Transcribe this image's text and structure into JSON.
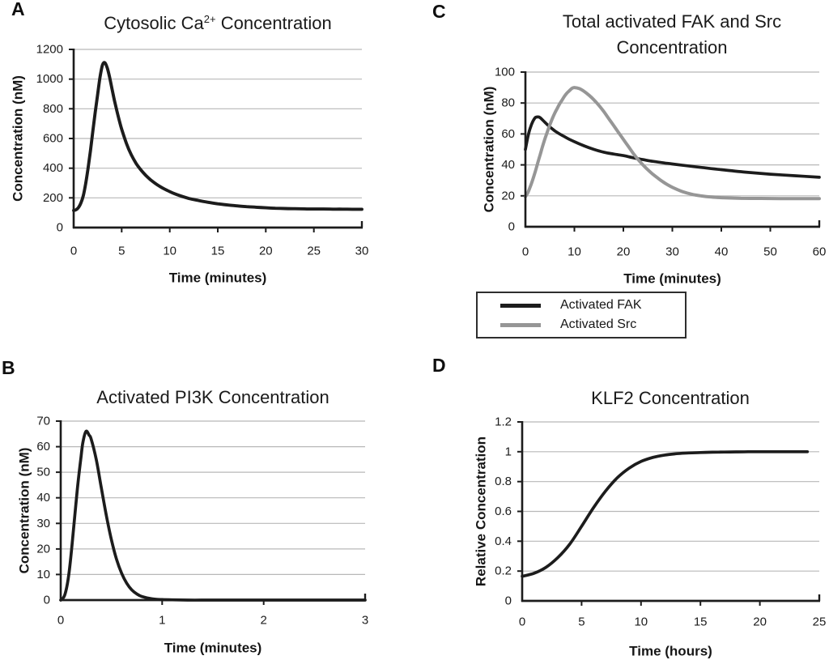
{
  "figure_type": "four-panel-line-figure",
  "colors": {
    "curve_black": "#1c1c1c",
    "curve_gray": "#969696",
    "gridline": "#b8b8b8",
    "axis": "#1c1c1c",
    "text": "#1c1c1c"
  },
  "chart_data": [
    {
      "panel_letter": "A",
      "type": "line",
      "title": "Cytosolic Ca2+ Concentration",
      "title_parts": {
        "pre": "Cytosolic Ca",
        "sup": "2+",
        "post": " Concentration"
      },
      "title_line2": "",
      "xlabel": "Time (minutes)",
      "ylabel": "Concentration (nM)",
      "xlim": [
        0,
        30
      ],
      "ylim": [
        0,
        1200
      ],
      "xticks": [
        0,
        5,
        10,
        15,
        20,
        25,
        30
      ],
      "yticks": [
        0,
        200,
        400,
        600,
        800,
        1000,
        1200
      ],
      "grid": "horizontal",
      "series": [
        {
          "name": "Cytosolic Ca2+",
          "color": "#1c1c1c",
          "width": 3.9,
          "x": [
            0,
            0.25,
            0.5,
            0.75,
            1,
            1.25,
            1.5,
            1.75,
            2,
            2.25,
            2.5,
            2.75,
            3,
            3.25,
            3.5,
            3.75,
            4,
            4.25,
            4.5,
            4.75,
            5,
            5.5,
            6,
            6.5,
            7,
            7.5,
            8,
            8.5,
            9,
            9.5,
            10,
            10.5,
            11,
            12,
            13,
            14,
            15,
            16,
            17,
            18,
            19,
            20,
            21,
            22,
            23,
            24,
            25,
            26,
            27,
            28,
            29,
            30
          ],
          "y": [
            115,
            120,
            135,
            165,
            215,
            295,
            400,
            520,
            650,
            780,
            900,
            1015,
            1095,
            1110,
            1075,
            1010,
            930,
            855,
            785,
            720,
            663,
            565,
            490,
            432,
            388,
            352,
            322,
            297,
            276,
            258,
            242,
            228,
            216,
            196,
            182,
            170,
            160,
            152,
            146,
            141,
            137,
            133,
            130,
            128,
            127,
            126,
            125,
            125,
            124,
            124,
            123,
            123
          ]
        }
      ]
    },
    {
      "panel_letter": "B",
      "type": "line",
      "title": "Activated PI3K Concentration",
      "title_parts": {
        "pre": "Activated PI3K Concentration",
        "sup": "",
        "post": ""
      },
      "title_line2": "",
      "xlabel": "Time (minutes)",
      "ylabel": "Concentration (nM)",
      "xlim": [
        0,
        3
      ],
      "ylim": [
        0,
        70
      ],
      "xticks": [
        0,
        1,
        2,
        3
      ],
      "yticks": [
        0,
        10,
        20,
        30,
        40,
        50,
        60,
        70
      ],
      "grid": "horizontal",
      "series": [
        {
          "name": "Activated PI3K",
          "color": "#1c1c1c",
          "width": 3.7,
          "x": [
            0,
            0.04,
            0.08,
            0.12,
            0.16,
            0.2,
            0.22,
            0.25,
            0.28,
            0.3,
            0.35,
            0.4,
            0.45,
            0.5,
            0.55,
            0.6,
            0.65,
            0.7,
            0.75,
            0.8,
            0.9,
            1,
            1.1,
            1.25,
            1.5,
            2,
            2.5,
            3
          ],
          "y": [
            0,
            2,
            10,
            25,
            42,
            56,
            62,
            66,
            64.5,
            63,
            55,
            44,
            33,
            23.5,
            16,
            10.5,
            6.6,
            4,
            2.4,
            1.4,
            0.5,
            0.2,
            0.1,
            0,
            0,
            0,
            0,
            0
          ]
        }
      ]
    },
    {
      "panel_letter": "C",
      "type": "line",
      "title": "Total activated FAK and Src Concentration",
      "title_parts": {
        "pre": "Total activated FAK and Src",
        "sup": "",
        "post": ""
      },
      "title_line2": "Concentration",
      "xlabel": "Time (minutes)",
      "ylabel": "Concentration (nM)",
      "xlim": [
        0,
        60
      ],
      "ylim": [
        0,
        100
      ],
      "xticks": [
        0,
        10,
        20,
        30,
        40,
        50,
        60
      ],
      "yticks": [
        0,
        20,
        40,
        60,
        80,
        100
      ],
      "grid": "horizontal",
      "legend": {
        "position": "bottom-left-box"
      },
      "series": [
        {
          "name": "Activated FAK",
          "color": "#1c1c1c",
          "width": 3.7,
          "x": [
            0,
            0.5,
            1,
            1.5,
            2,
            2.5,
            3,
            4,
            5,
            6,
            7,
            8,
            9,
            10,
            12,
            14,
            16,
            18,
            20,
            22,
            24,
            26,
            28,
            30,
            33,
            36,
            40,
            45,
            50,
            55,
            60
          ],
          "y": [
            50,
            58,
            64,
            68,
            70.5,
            71,
            70.5,
            67.5,
            64.5,
            62,
            60,
            58.2,
            56.5,
            55,
            52.3,
            50,
            48.2,
            47,
            46,
            44.6,
            43.4,
            42.3,
            41.4,
            40.6,
            39.4,
            38.3,
            36.9,
            35.3,
            34,
            33,
            32
          ]
        },
        {
          "name": "Activated Src",
          "color": "#969696",
          "width": 4,
          "x": [
            0,
            0.5,
            1,
            1.5,
            2,
            2.5,
            3,
            3.5,
            4,
            4.5,
            5,
            5.5,
            6,
            6.5,
            7,
            7.5,
            8,
            8.5,
            9,
            9.5,
            10,
            11,
            12,
            13,
            14,
            15,
            16,
            17,
            18,
            19,
            20,
            21,
            22,
            23,
            24,
            25,
            26,
            27,
            28,
            29,
            30,
            32,
            34,
            36,
            38,
            40,
            44,
            48,
            52,
            56,
            60
          ],
          "y": [
            19.5,
            22,
            26,
            30.5,
            35.5,
            41,
            46.5,
            52,
            57,
            61.5,
            66,
            70,
            73.5,
            76.5,
            79.5,
            82,
            84.5,
            86.5,
            88,
            89.5,
            90,
            89.3,
            87.5,
            85,
            82,
            78.5,
            74.5,
            70,
            65.5,
            61,
            56.5,
            52,
            47.5,
            43.5,
            40,
            36.8,
            34,
            31.5,
            29.2,
            27.2,
            25.5,
            22.8,
            21,
            19.9,
            19.2,
            18.8,
            18.4,
            18.3,
            18.2,
            18.2,
            18.2
          ]
        }
      ]
    },
    {
      "panel_letter": "D",
      "type": "line",
      "title": "KLF2 Concentration",
      "title_parts": {
        "pre": "KLF2 Concentration",
        "sup": "",
        "post": ""
      },
      "title_line2": "",
      "xlabel": "Time (hours)",
      "ylabel": "Relative Concentration",
      "xlim": [
        0,
        25
      ],
      "ylim": [
        0,
        1.2
      ],
      "xticks": [
        0,
        5,
        10,
        15,
        20,
        25
      ],
      "yticks": [
        0,
        0.2,
        0.4,
        0.6,
        0.8,
        1,
        1.2
      ],
      "grid": "horizontal",
      "series": [
        {
          "name": "KLF2",
          "color": "#1c1c1c",
          "width": 3.7,
          "x": [
            0,
            1,
            2,
            3,
            4,
            5,
            6,
            7,
            8,
            9,
            10,
            11,
            12,
            13,
            14,
            15,
            16,
            17,
            18,
            19,
            20,
            21,
            22,
            23,
            24
          ],
          "y": [
            0.165,
            0.185,
            0.225,
            0.29,
            0.38,
            0.5,
            0.625,
            0.735,
            0.825,
            0.89,
            0.935,
            0.962,
            0.978,
            0.987,
            0.992,
            0.995,
            0.997,
            0.998,
            0.999,
            1,
            1,
            1,
            1,
            1,
            1
          ]
        }
      ]
    }
  ]
}
